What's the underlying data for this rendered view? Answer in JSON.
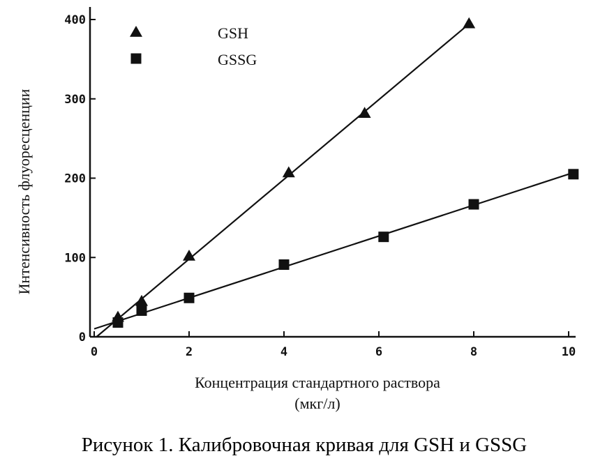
{
  "chart_data": {
    "type": "scatter",
    "title": "",
    "caption": "Рисунок 1. Калибровочная кривая для GSH и GSSG",
    "xlabel": "Концентрация стандартного раствора",
    "xlabel_unit": "(мкг/л)",
    "ylabel": "Интенсивность флуоресценции",
    "xlim": [
      0,
      10
    ],
    "ylim": [
      0,
      400
    ],
    "xticks": [
      0,
      2,
      4,
      6,
      8,
      10
    ],
    "yticks": [
      0,
      100,
      200,
      300,
      400
    ],
    "grid": false,
    "legend_position": "top-left",
    "series": [
      {
        "name": "GSH",
        "marker": "triangle",
        "x": [
          0.5,
          1,
          2,
          4.1,
          5.7,
          7.9
        ],
        "y": [
          25,
          45,
          102,
          207,
          282,
          395
        ],
        "fit_line": {
          "x": [
            0.05,
            7.95
          ],
          "y": [
            0,
            397
          ]
        }
      },
      {
        "name": "GSSG",
        "marker": "square",
        "x": [
          0.5,
          1,
          2,
          4,
          6.1,
          8,
          10.1
        ],
        "y": [
          18,
          33,
          49,
          91,
          126,
          167,
          205
        ],
        "fit_line": {
          "x": [
            0,
            10.1
          ],
          "y": [
            10,
            207
          ]
        }
      }
    ]
  }
}
